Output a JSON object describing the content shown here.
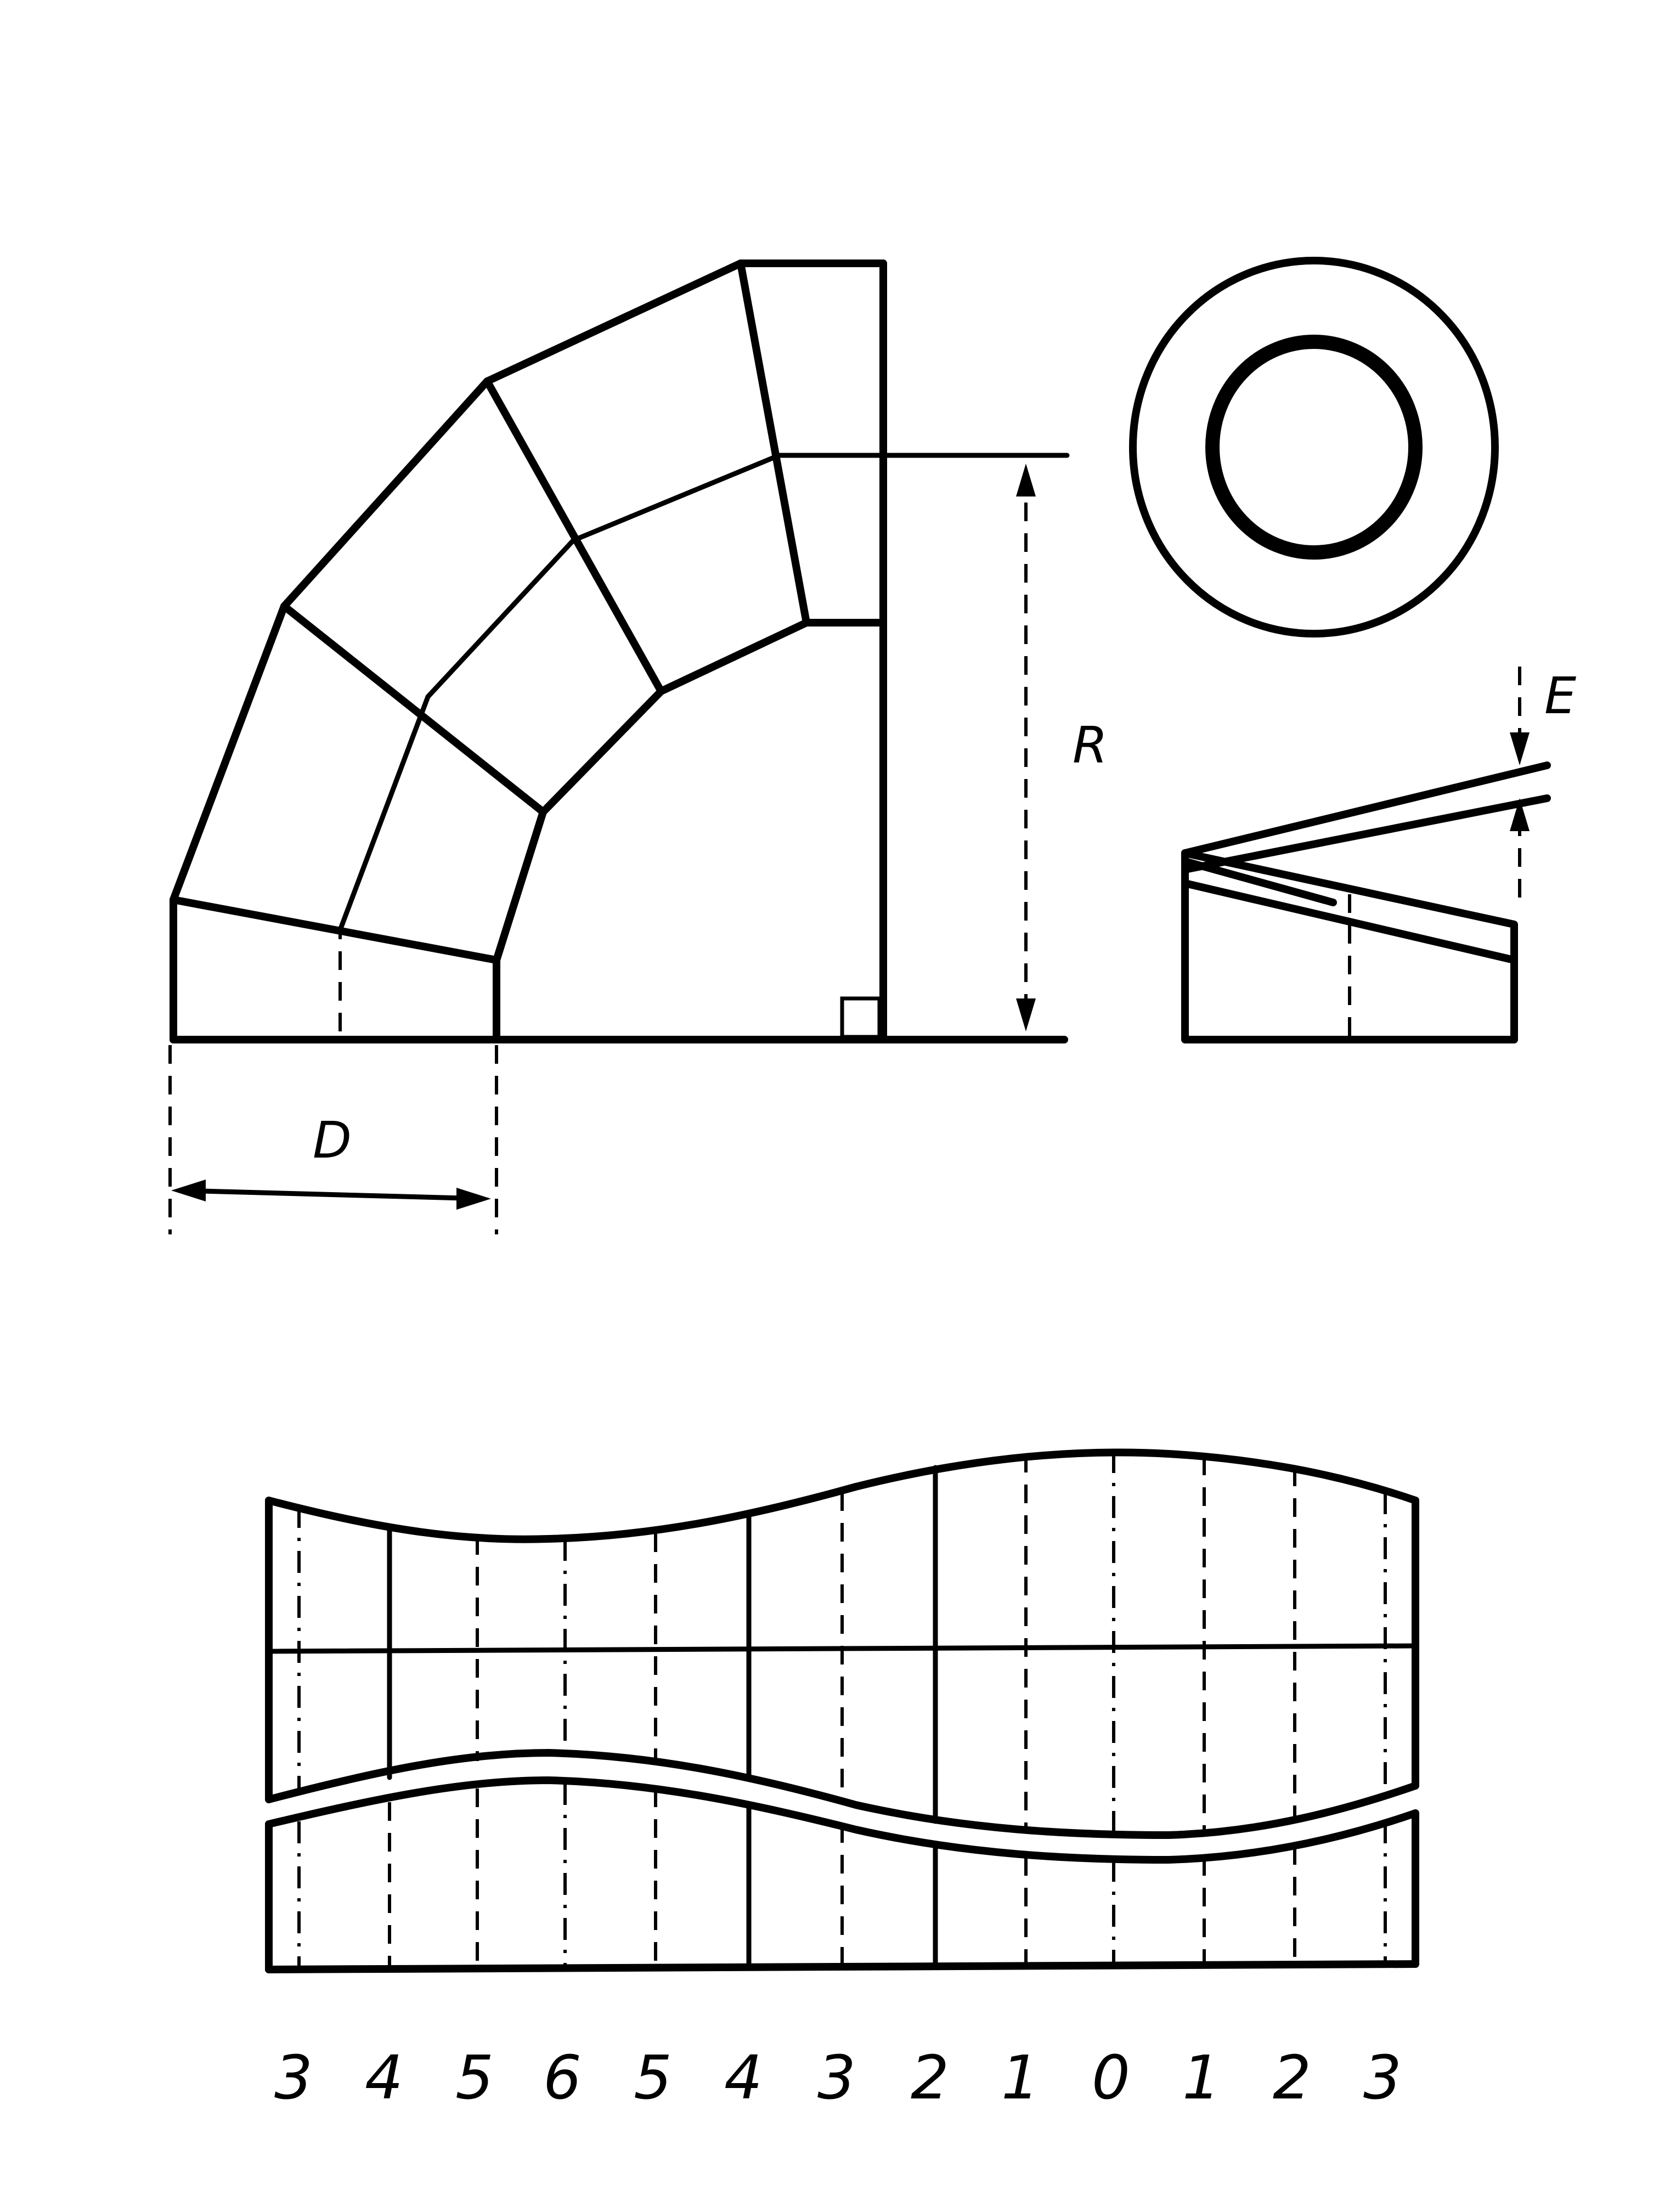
{
  "labels": {
    "diameter": "D",
    "radius": "R",
    "thickness": "E"
  },
  "station_numbers": [
    "3",
    "4",
    "5",
    "6",
    "5",
    "4",
    "3",
    "2",
    "1",
    "0",
    "1",
    "2",
    "3"
  ]
}
